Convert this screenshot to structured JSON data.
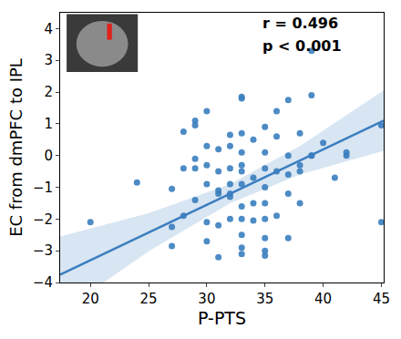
{
  "chart_data": {
    "type": "scatter",
    "x_label": "P-PTS",
    "y_label": "EC from dmPFC to IPL",
    "annotations": [
      "r = 0.496",
      "p < 0.001"
    ],
    "xlim": [
      17.4,
      45.2
    ],
    "ylim": [
      -4,
      4.5
    ],
    "xticks": [
      20,
      25,
      30,
      35,
      40,
      45
    ],
    "yticks": [
      -4,
      -3,
      -2,
      -1,
      0,
      1,
      2,
      3,
      4
    ],
    "grid": false,
    "series": [
      {
        "type": "scatter",
        "marker": "circle",
        "color": "#3a7ebf",
        "x": [
          20,
          24,
          27,
          27,
          27,
          28,
          28,
          28,
          29,
          29,
          29,
          29,
          29,
          30,
          30,
          30,
          30,
          30,
          30,
          31,
          31,
          31,
          31,
          31,
          31,
          32,
          32,
          32,
          32,
          32,
          32,
          32,
          33,
          33,
          33,
          33,
          33,
          33,
          33,
          33,
          33,
          33,
          33,
          33,
          34,
          34,
          34,
          34,
          35,
          35,
          35,
          35,
          35,
          35,
          35,
          35,
          35,
          36,
          36,
          36,
          36,
          37,
          37,
          37,
          37,
          37,
          38,
          38,
          38,
          38,
          39,
          39,
          39,
          39,
          40,
          41,
          42,
          42,
          45,
          45
        ],
        "values": [
          -2.1,
          -0.85,
          -1.05,
          -2.25,
          -2.85,
          0.75,
          -0.4,
          -1.9,
          0.95,
          1.1,
          -1.4,
          -0.1,
          -0.4,
          1.4,
          0.3,
          -0.3,
          -2.1,
          -2.7,
          -0.9,
          0.2,
          -0.5,
          -1.1,
          -1.2,
          -3.2,
          -2.2,
          0.65,
          0.3,
          -0.4,
          -0.9,
          -1.3,
          -2.0,
          -1.2,
          1.85,
          1.8,
          0.7,
          0.1,
          -0.3,
          -0.5,
          -0.9,
          -1.6,
          -2.0,
          -2.5,
          -2.9,
          -3.1,
          0.5,
          -0.7,
          -1.5,
          -2.05,
          0.9,
          0.1,
          -0.4,
          -1.0,
          -1.5,
          -2.0,
          -3.0,
          -3.15,
          -2.6,
          1.4,
          0.6,
          -0.5,
          -1.9,
          1.75,
          0.0,
          -0.6,
          -1.2,
          -2.6,
          0.7,
          -0.3,
          -0.5,
          -1.5,
          3.3,
          1.9,
          0.0,
          0.0,
          0.4,
          -0.7,
          0.0,
          0.1,
          0.95,
          -2.1
        ]
      },
      {
        "type": "line",
        "line_style": "solid",
        "color": "#3a7ebf",
        "x": [
          17.4,
          25,
          32,
          38,
          45.2
        ],
        "values": [
          -3.75,
          -2.42,
          -1.2,
          -0.15,
          1.1
        ],
        "lower": [
          -4.95,
          -3.02,
          -1.5,
          -0.6,
          0.15
        ],
        "upper": [
          -2.55,
          -1.82,
          -0.9,
          0.3,
          2.05
        ]
      }
    ]
  }
}
